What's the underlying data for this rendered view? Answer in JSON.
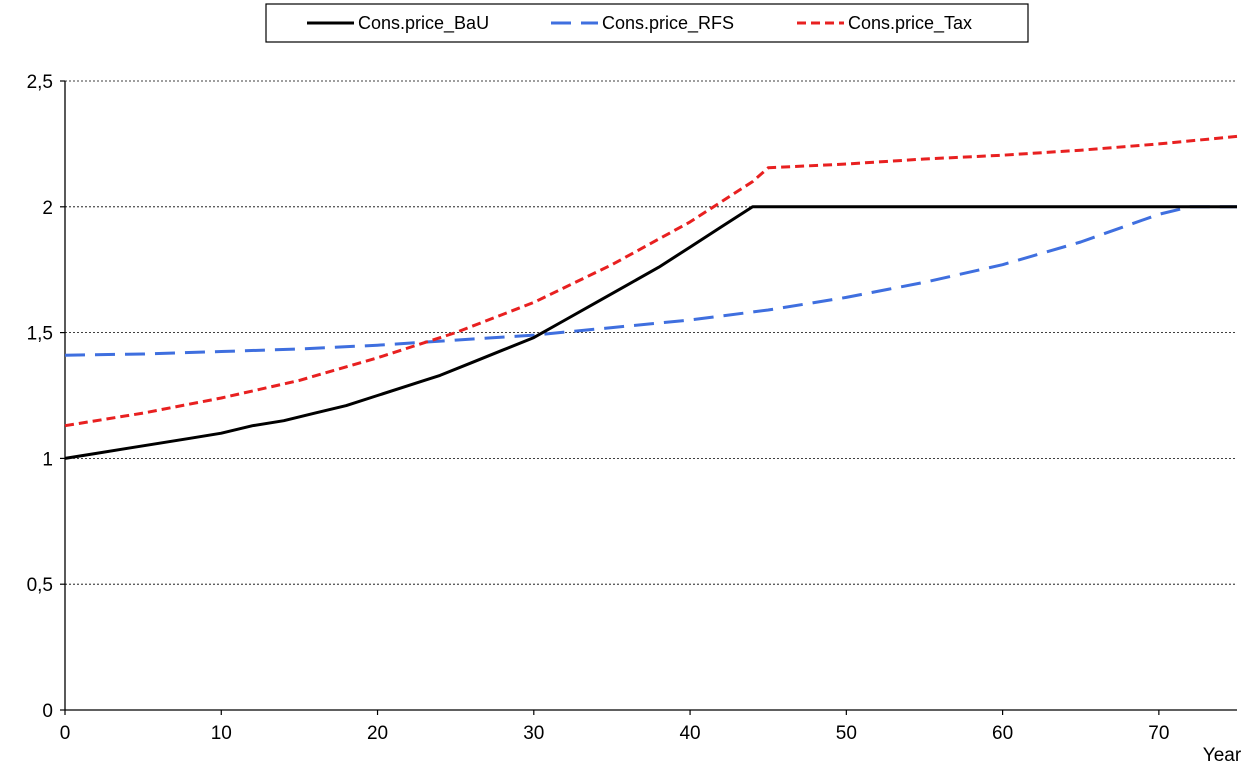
{
  "chart_data": {
    "type": "line",
    "title": "",
    "xlabel": "Year",
    "ylabel": "",
    "xlim": [
      0,
      75
    ],
    "ylim": [
      0,
      2.5
    ],
    "x_ticks": [
      0,
      10,
      20,
      30,
      40,
      50,
      60,
      70
    ],
    "x_tick_labels": [
      "0",
      "10",
      "20",
      "30",
      "40",
      "50",
      "60",
      "70"
    ],
    "y_ticks": [
      0,
      0.5,
      1,
      1.5,
      2,
      2.5
    ],
    "y_tick_labels": [
      "0",
      "0,5",
      "1",
      "1,5",
      "2",
      "2,5"
    ],
    "grid": "horizontal dotted",
    "legend_position": "top-center",
    "series": [
      {
        "name": "Cons.price_BaU",
        "color": "#000000",
        "dash": "solid",
        "x": [
          0,
          2,
          4,
          6,
          8,
          10,
          12,
          14,
          16,
          18,
          20,
          22,
          24,
          26,
          28,
          30,
          32,
          34,
          36,
          38,
          40,
          42,
          44,
          50,
          60,
          70,
          75
        ],
        "y": [
          1.0,
          1.02,
          1.04,
          1.06,
          1.08,
          1.1,
          1.13,
          1.15,
          1.18,
          1.21,
          1.25,
          1.29,
          1.33,
          1.38,
          1.43,
          1.48,
          1.55,
          1.62,
          1.69,
          1.76,
          1.84,
          1.92,
          2.0,
          2.0,
          2.0,
          2.0,
          2.0
        ]
      },
      {
        "name": "Cons.price_RFS",
        "color": "#3f6fdf",
        "dash": "long-dash",
        "x": [
          0,
          5,
          10,
          15,
          20,
          25,
          30,
          35,
          40,
          45,
          50,
          55,
          60,
          65,
          70,
          72,
          75
        ],
        "y": [
          1.41,
          1.415,
          1.425,
          1.435,
          1.45,
          1.47,
          1.49,
          1.52,
          1.55,
          1.59,
          1.64,
          1.7,
          1.77,
          1.86,
          1.97,
          2.0,
          2.0
        ]
      },
      {
        "name": "Cons.price_Tax",
        "color": "#e82020",
        "dash": "short-dash",
        "x": [
          0,
          5,
          10,
          15,
          20,
          25,
          30,
          35,
          40,
          44,
          45,
          50,
          55,
          60,
          65,
          70,
          75
        ],
        "y": [
          1.13,
          1.18,
          1.24,
          1.31,
          1.4,
          1.5,
          1.62,
          1.77,
          1.94,
          2.1,
          2.155,
          2.17,
          2.19,
          2.205,
          2.225,
          2.25,
          2.28
        ]
      }
    ]
  }
}
